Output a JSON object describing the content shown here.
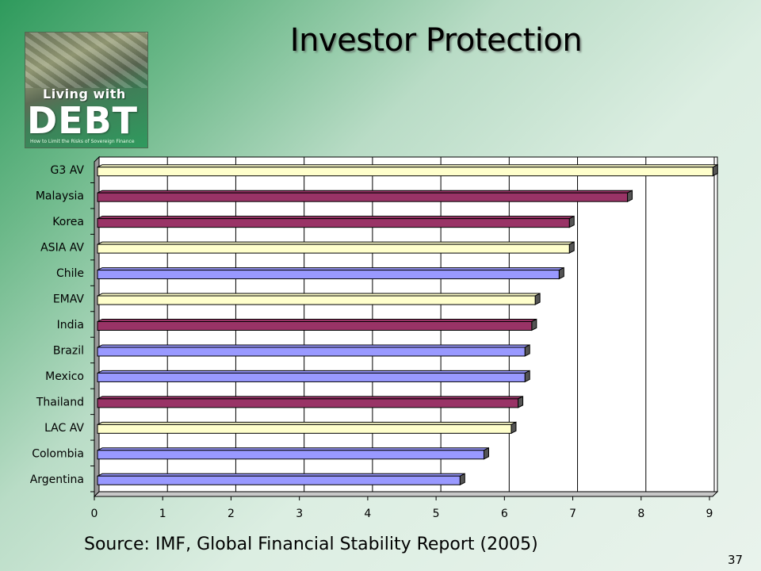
{
  "slide": {
    "title": "Investor Protection",
    "source": "Source: IMF, Global Financial Stability Report (2005)",
    "page_number": "37"
  },
  "logo": {
    "line1": "Living with",
    "line2": "DEBT",
    "tagline": "How to Limit the Risks of Sovereign Finance"
  },
  "colors": {
    "average": "#ffffcc",
    "asia": "#993366",
    "latin_america": "#9999ff"
  },
  "chart_data": {
    "type": "bar",
    "orientation": "horizontal",
    "categories": [
      "G3 AV",
      "Malaysia",
      "Korea",
      "ASIA AV",
      "Chile",
      "EMAV",
      "India",
      "Brazil",
      "Mexico",
      "Thailand",
      "LAC AV",
      "Colombia",
      "Argentina"
    ],
    "values": [
      9.05,
      7.8,
      6.95,
      6.95,
      6.8,
      6.45,
      6.4,
      6.3,
      6.3,
      6.2,
      6.1,
      5.7,
      5.35
    ],
    "groups": [
      "average",
      "asia",
      "asia",
      "average",
      "latin_america",
      "average",
      "asia",
      "latin_america",
      "latin_america",
      "asia",
      "average",
      "latin_america",
      "latin_america"
    ],
    "xlim": [
      0,
      9
    ],
    "xticks": [
      "0",
      "1",
      "2",
      "3",
      "4",
      "5",
      "6",
      "7",
      "8",
      "9"
    ],
    "grid": true,
    "xlabel": "",
    "ylabel": ""
  }
}
